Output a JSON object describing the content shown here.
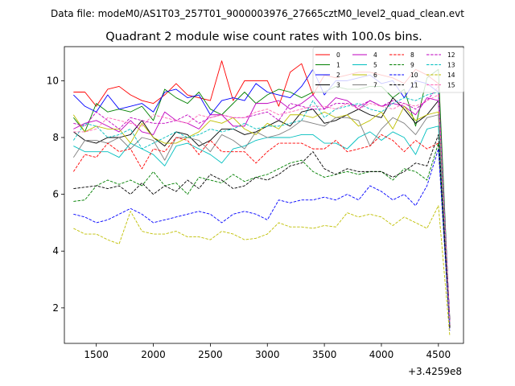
{
  "figure": {
    "suptitle": "Data file: modeM0/AS1T03_257T01_9000003976_27665cztM0_level2_quad_clean.evt"
  },
  "chart_data": {
    "type": "line",
    "title": "Quadrant 2 module wise count rates with 100.0s bins.",
    "xlabel": "",
    "ylabel": "",
    "x_offset_label": "+3.4259e8",
    "xlim": [
      1220,
      4720
    ],
    "ylim": [
      0.75,
      11.2
    ],
    "xticks": [
      1500,
      2000,
      2500,
      3000,
      3500,
      4000,
      4500
    ],
    "xtick_labels": [
      "1500",
      "2000",
      "2500",
      "3000",
      "3500",
      "4000",
      "4500"
    ],
    "yticks": [
      2,
      4,
      6,
      8,
      10
    ],
    "ytick_labels": [
      "2",
      "4",
      "6",
      "8",
      "10"
    ],
    "grid": false,
    "legend_placement": "top-right",
    "legend_columns": 4,
    "x": [
      1300,
      1400,
      1500,
      1600,
      1700,
      1800,
      1900,
      2000,
      2100,
      2200,
      2300,
      2400,
      2500,
      2600,
      2700,
      2800,
      2900,
      3000,
      3100,
      3200,
      3300,
      3400,
      3500,
      3600,
      3700,
      3800,
      3900,
      4000,
      4100,
      4200,
      4300,
      4400,
      4500,
      4600
    ],
    "series": [
      {
        "name": "0",
        "color": "#ff0000",
        "dash": "solid",
        "values": [
          9.6,
          9.6,
          9.1,
          9.7,
          9.8,
          9.5,
          9.3,
          9.2,
          9.5,
          9.9,
          9.5,
          9.4,
          9.3,
          10.7,
          9.3,
          10.0,
          10.0,
          10.0,
          9.1,
          10.3,
          10.6,
          9.5,
          10.2,
          10.1,
          10.2,
          10.3,
          10.3,
          10.2,
          10.1,
          9.9,
          10.4,
          10.2,
          9.9,
          1.3
        ]
      },
      {
        "name": "1",
        "color": "#008000",
        "dash": "solid",
        "values": [
          8.7,
          8.2,
          9.2,
          8.9,
          9.0,
          8.9,
          9.1,
          8.6,
          9.7,
          9.4,
          9.2,
          9.6,
          9.0,
          8.8,
          9.2,
          9.6,
          9.2,
          9.5,
          9.7,
          9.6,
          9.4,
          9.6,
          9.6,
          9.8,
          9.7,
          9.7,
          9.8,
          9.8,
          9.4,
          9.7,
          8.4,
          10.1,
          10.4,
          1.4
        ]
      },
      {
        "name": "2",
        "color": "#0000ff",
        "dash": "solid",
        "values": [
          9.5,
          9.1,
          8.9,
          9.5,
          9.0,
          9.1,
          9.2,
          8.9,
          9.6,
          9.7,
          9.4,
          9.5,
          8.8,
          9.3,
          9.4,
          9.3,
          9.9,
          9.6,
          9.5,
          9.4,
          9.8,
          10.4,
          9.5,
          10.0,
          10.0,
          10.1,
          10.2,
          9.9,
          10.0,
          9.4,
          10.0,
          9.9,
          9.6,
          1.5
        ]
      },
      {
        "name": "3",
        "color": "#000000",
        "dash": "solid",
        "values": [
          8.2,
          7.9,
          7.8,
          8.0,
          8.0,
          8.1,
          8.6,
          8.0,
          7.7,
          8.2,
          8.1,
          7.7,
          7.9,
          8.3,
          8.3,
          8.1,
          8.2,
          8.4,
          8.6,
          8.4,
          8.9,
          9.0,
          8.5,
          8.6,
          8.8,
          9.0,
          8.8,
          8.7,
          9.4,
          9.0,
          8.5,
          8.8,
          9.3,
          1.6
        ]
      },
      {
        "name": "4",
        "color": "#bf00bf",
        "dash": "solid",
        "values": [
          8.3,
          8.5,
          8.6,
          8.4,
          8.2,
          8.6,
          8.2,
          8.1,
          8.9,
          8.6,
          8.5,
          8.3,
          8.8,
          8.8,
          8.4,
          8.4,
          9.2,
          9.2,
          9.3,
          9.0,
          9.2,
          9.5,
          9.0,
          9.4,
          9.3,
          9.0,
          9.3,
          9.1,
          9.2,
          9.1,
          8.8,
          9.4,
          9.3,
          1.4
        ]
      },
      {
        "name": "5",
        "color": "#00bfbf",
        "dash": "solid",
        "values": [
          7.7,
          7.5,
          7.5,
          7.5,
          7.3,
          7.8,
          7.6,
          7.4,
          7.0,
          7.7,
          7.8,
          7.6,
          7.4,
          7.1,
          7.6,
          7.7,
          7.9,
          8.0,
          8.0,
          8.0,
          8.1,
          8.1,
          7.8,
          7.8,
          7.6,
          8.0,
          8.2,
          7.9,
          8.2,
          8.0,
          7.4,
          8.3,
          8.4,
          1.3
        ]
      },
      {
        "name": "6",
        "color": "#bfbf00",
        "dash": "solid",
        "values": [
          8.8,
          8.2,
          8.4,
          8.3,
          8.3,
          7.8,
          8.5,
          8.0,
          7.8,
          7.8,
          8.0,
          8.2,
          8.6,
          8.5,
          8.7,
          8.3,
          8.1,
          8.5,
          8.3,
          8.8,
          8.8,
          8.7,
          8.9,
          8.7,
          8.8,
          8.4,
          8.6,
          8.9,
          8.3,
          9.1,
          8.6,
          8.8,
          8.9,
          1.4
        ]
      },
      {
        "name": "7",
        "color": "#808080",
        "dash": "solid",
        "values": [
          7.3,
          7.9,
          7.9,
          7.8,
          8.0,
          7.6,
          8.0,
          7.9,
          7.2,
          8.0,
          8.0,
          7.9,
          7.5,
          8.1,
          7.9,
          7.6,
          8.2,
          8.0,
          8.1,
          8.3,
          8.6,
          8.5,
          8.4,
          8.7,
          8.7,
          8.6,
          7.7,
          8.3,
          8.7,
          8.5,
          8.1,
          8.7,
          8.8,
          1.3
        ]
      },
      {
        "name": "8",
        "color": "#ff0000",
        "dash": "dashed",
        "values": [
          6.8,
          7.4,
          7.3,
          7.8,
          7.5,
          7.6,
          6.9,
          7.6,
          7.5,
          8.0,
          7.9,
          7.4,
          7.9,
          7.5,
          7.5,
          7.5,
          7.1,
          7.5,
          7.8,
          7.8,
          7.8,
          7.6,
          7.6,
          7.9,
          7.5,
          7.6,
          7.7,
          8.1,
          7.9,
          7.5,
          7.9,
          7.6,
          7.8,
          1.3
        ]
      },
      {
        "name": "9",
        "color": "#008000",
        "dash": "dashed",
        "values": [
          5.75,
          5.8,
          6.3,
          6.5,
          6.35,
          6.5,
          6.3,
          6.8,
          6.3,
          6.4,
          6.0,
          6.6,
          6.5,
          6.4,
          6.7,
          6.45,
          6.6,
          6.7,
          6.9,
          7.1,
          7.2,
          6.8,
          6.6,
          6.7,
          6.8,
          6.7,
          6.8,
          6.8,
          6.5,
          6.9,
          6.8,
          6.5,
          7.8,
          1.3
        ]
      },
      {
        "name": "10",
        "color": "#0000ff",
        "dash": "dashed",
        "values": [
          5.3,
          5.2,
          5.0,
          5.1,
          5.3,
          5.5,
          5.3,
          5.0,
          5.1,
          5.2,
          5.3,
          5.4,
          5.3,
          5.0,
          5.3,
          5.4,
          5.3,
          5.1,
          5.8,
          5.7,
          5.8,
          5.8,
          5.9,
          5.8,
          6.0,
          5.8,
          6.3,
          6.1,
          5.8,
          6.0,
          5.6,
          6.3,
          7.6,
          1.2
        ]
      },
      {
        "name": "11",
        "color": "#000000",
        "dash": "dashed",
        "values": [
          6.2,
          6.25,
          6.3,
          6.2,
          6.3,
          6.0,
          6.4,
          6.0,
          6.3,
          6.1,
          6.5,
          6.2,
          6.7,
          6.5,
          6.2,
          6.3,
          6.6,
          6.5,
          6.7,
          7.0,
          7.1,
          7.5,
          6.9,
          6.7,
          6.9,
          6.8,
          6.8,
          6.8,
          6.6,
          6.8,
          7.1,
          7.0,
          8.1,
          1.3
        ]
      },
      {
        "name": "12",
        "color": "#bf00bf",
        "dash": "dashed",
        "values": [
          8.5,
          8.4,
          8.9,
          8.6,
          8.3,
          8.7,
          8.6,
          8.5,
          8.5,
          8.6,
          8.8,
          8.5,
          8.7,
          8.8,
          8.7,
          8.7,
          8.8,
          8.9,
          8.6,
          9.2,
          9.1,
          9.0,
          9.0,
          9.2,
          9.2,
          9.1,
          9.3,
          9.1,
          9.3,
          9.2,
          9.0,
          9.3,
          9.8,
          1.4
        ]
      },
      {
        "name": "13",
        "color": "#00bfbf",
        "dash": "dashed",
        "values": [
          7.9,
          8.5,
          8.4,
          8.0,
          8.1,
          8.3,
          7.6,
          7.8,
          8.0,
          8.2,
          8.0,
          8.1,
          8.3,
          8.2,
          8.3,
          8.5,
          8.3,
          8.4,
          8.4,
          8.5,
          8.6,
          9.3,
          8.7,
          9.0,
          9.1,
          9.2,
          9.0,
          8.9,
          9.2,
          9.4,
          9.3,
          9.5,
          9.6,
          1.4
        ]
      },
      {
        "name": "14",
        "color": "#bfbf00",
        "dash": "dashed",
        "values": [
          4.8,
          4.6,
          4.6,
          4.4,
          4.25,
          5.4,
          4.7,
          4.6,
          4.6,
          4.7,
          4.5,
          4.5,
          4.4,
          4.7,
          4.6,
          4.4,
          4.45,
          4.6,
          5.0,
          4.85,
          4.85,
          4.8,
          4.9,
          4.85,
          5.35,
          5.2,
          5.3,
          5.2,
          4.9,
          5.2,
          5.0,
          4.8,
          5.6,
          1.0
        ]
      },
      {
        "name": "15",
        "color": "#ff69b4",
        "dash": "dashed",
        "values": [
          8.2,
          8.2,
          8.3,
          8.7,
          8.6,
          8.5,
          8.4,
          8.8,
          8.7,
          8.6,
          8.5,
          8.8,
          8.7,
          8.8,
          8.7,
          8.7,
          8.9,
          9.0,
          8.8,
          8.9,
          9.0,
          9.1,
          9.1,
          9.0,
          9.2,
          9.0,
          9.2,
          9.1,
          9.0,
          9.2,
          9.1,
          9.3,
          9.5,
          1.5
        ]
      }
    ]
  }
}
